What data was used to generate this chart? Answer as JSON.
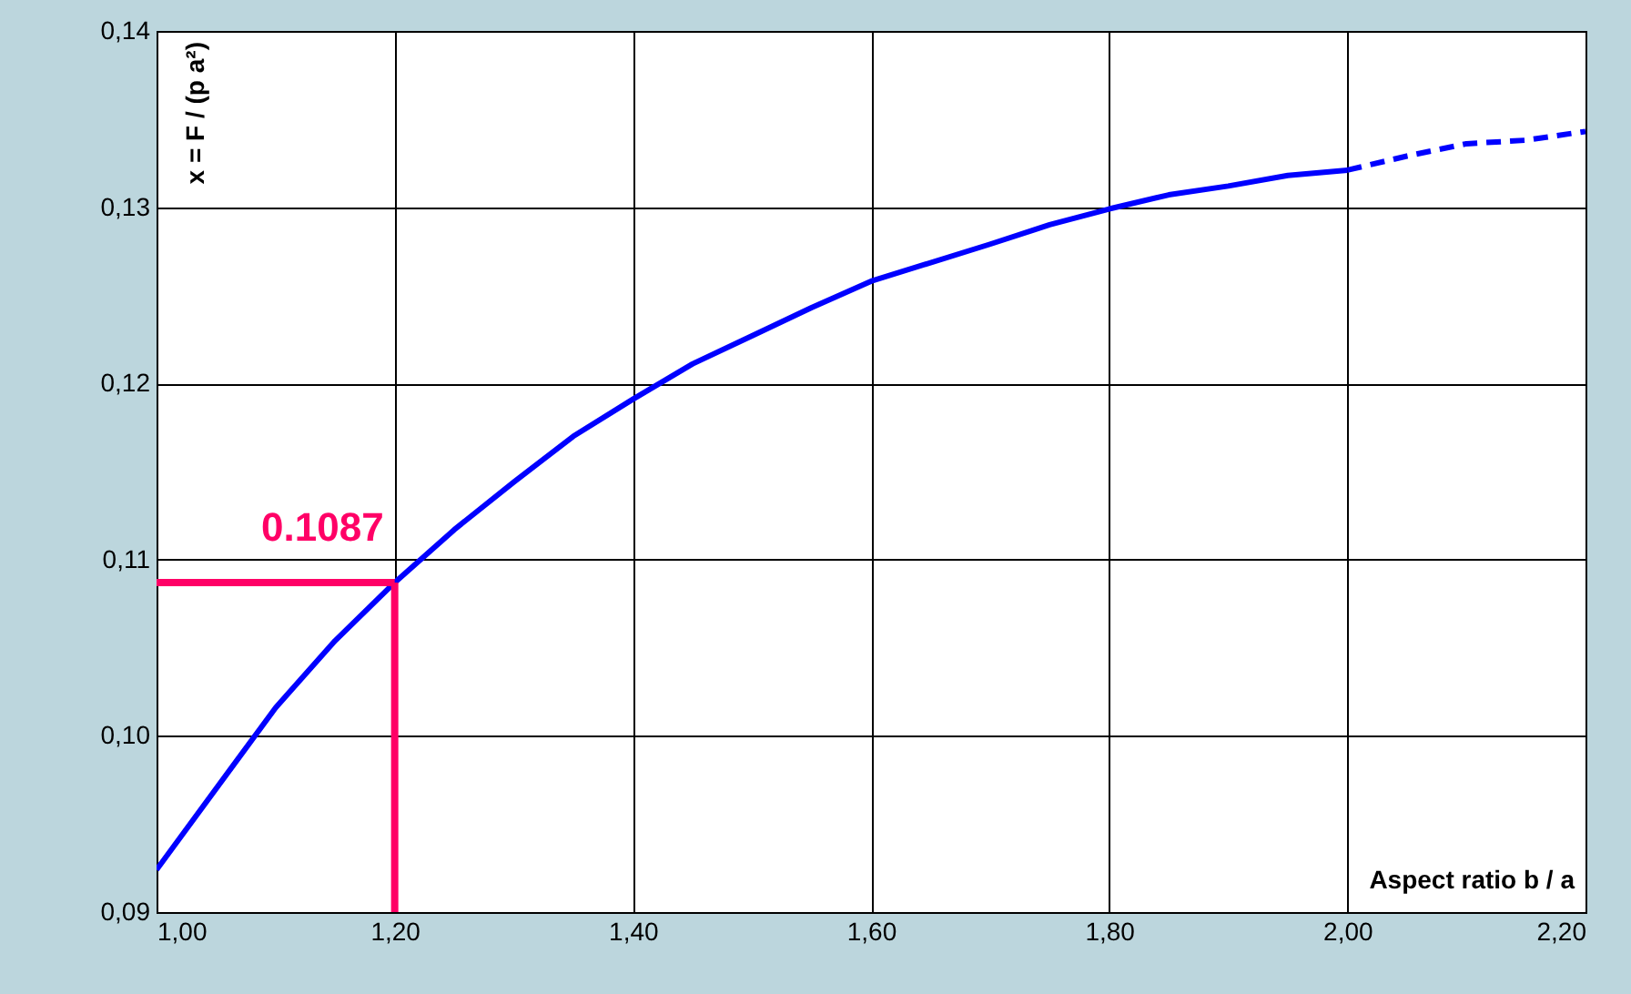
{
  "chart_data": {
    "type": "line",
    "xlabel": "Aspect ratio b / a",
    "ylabel": "x = F / (p a²)",
    "xlim": [
      1.0,
      2.2
    ],
    "ylim": [
      0.09,
      0.14
    ],
    "xticks": [
      {
        "value": 1.0,
        "label": "1,00"
      },
      {
        "value": 1.2,
        "label": "1,20"
      },
      {
        "value": 1.4,
        "label": "1,40"
      },
      {
        "value": 1.6,
        "label": "1,60"
      },
      {
        "value": 1.8,
        "label": "1,80"
      },
      {
        "value": 2.0,
        "label": "2,00"
      },
      {
        "value": 2.2,
        "label": "2,20"
      }
    ],
    "yticks": [
      {
        "value": 0.09,
        "label": "0,09"
      },
      {
        "value": 0.1,
        "label": "0,10"
      },
      {
        "value": 0.11,
        "label": "0,11"
      },
      {
        "value": 0.12,
        "label": "0,12"
      },
      {
        "value": 0.13,
        "label": "0,13"
      },
      {
        "value": 0.14,
        "label": "0,14"
      }
    ],
    "grid": true,
    "marker": "none",
    "series": [
      {
        "color": "#0000ff",
        "line_style": "solid",
        "x": [
          1.0,
          1.1,
          1.15,
          1.2,
          1.25,
          1.3,
          1.35,
          1.4,
          1.45,
          1.5,
          1.55,
          1.6,
          1.7,
          1.75,
          1.8,
          1.85,
          1.9,
          1.95,
          2.0
        ],
        "values": [
          0.0924,
          0.1016,
          0.1054,
          0.1087,
          0.1117,
          0.1144,
          0.117,
          0.1191,
          0.1211,
          0.1227,
          0.1243,
          0.1258,
          0.1279,
          0.129,
          0.1299,
          0.1307,
          0.1312,
          0.1318,
          0.1321
        ]
      },
      {
        "color": "#0000ff",
        "line_style": "dashed",
        "x": [
          2.0,
          2.05,
          2.1,
          2.15,
          2.2
        ],
        "values": [
          0.1321,
          0.1329,
          0.1336,
          0.1338,
          0.1343
        ]
      }
    ],
    "annotations": [
      {
        "text": "0.1087",
        "x": 1.2,
        "y": 0.1087
      }
    ]
  }
}
